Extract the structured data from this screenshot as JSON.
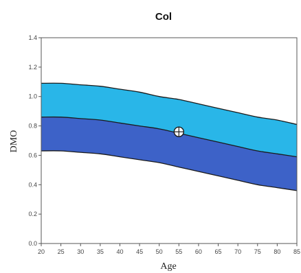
{
  "chart_data": {
    "type": "area",
    "title": "Col",
    "xlabel": "Age",
    "ylabel": "DMO",
    "xlim": [
      20,
      85
    ],
    "ylim": [
      0.0,
      1.4
    ],
    "x_ticks": [
      "20",
      "25",
      "30",
      "35",
      "40",
      "45",
      "50",
      "55",
      "60",
      "65",
      "70",
      "75",
      "80",
      "85"
    ],
    "y_ticks": [
      "0.0",
      "0.2",
      "0.4",
      "0.6",
      "0.8",
      "1.0",
      "1.2",
      "1.4"
    ],
    "x": [
      20,
      25,
      30,
      35,
      40,
      45,
      50,
      55,
      60,
      65,
      70,
      75,
      80,
      85
    ],
    "series": [
      {
        "values": [
          1.09,
          1.09,
          1.08,
          1.07,
          1.05,
          1.03,
          1.0,
          0.98,
          0.95,
          0.92,
          0.89,
          0.86,
          0.84,
          0.81
        ]
      },
      {
        "values": [
          0.86,
          0.86,
          0.85,
          0.84,
          0.82,
          0.8,
          0.78,
          0.75,
          0.72,
          0.69,
          0.66,
          0.63,
          0.61,
          0.59
        ]
      },
      {
        "values": [
          0.63,
          0.63,
          0.62,
          0.61,
          0.59,
          0.57,
          0.55,
          0.52,
          0.49,
          0.46,
          0.43,
          0.4,
          0.38,
          0.36
        ]
      }
    ],
    "marker": {
      "x": 55,
      "y": 0.76
    },
    "colors": {
      "upper_band": "#29b6e8",
      "lower_band": "#3d62c8",
      "outline": "#1a1a1a",
      "marker_fill": "#ffffff"
    },
    "grid": false,
    "legend": "none"
  }
}
